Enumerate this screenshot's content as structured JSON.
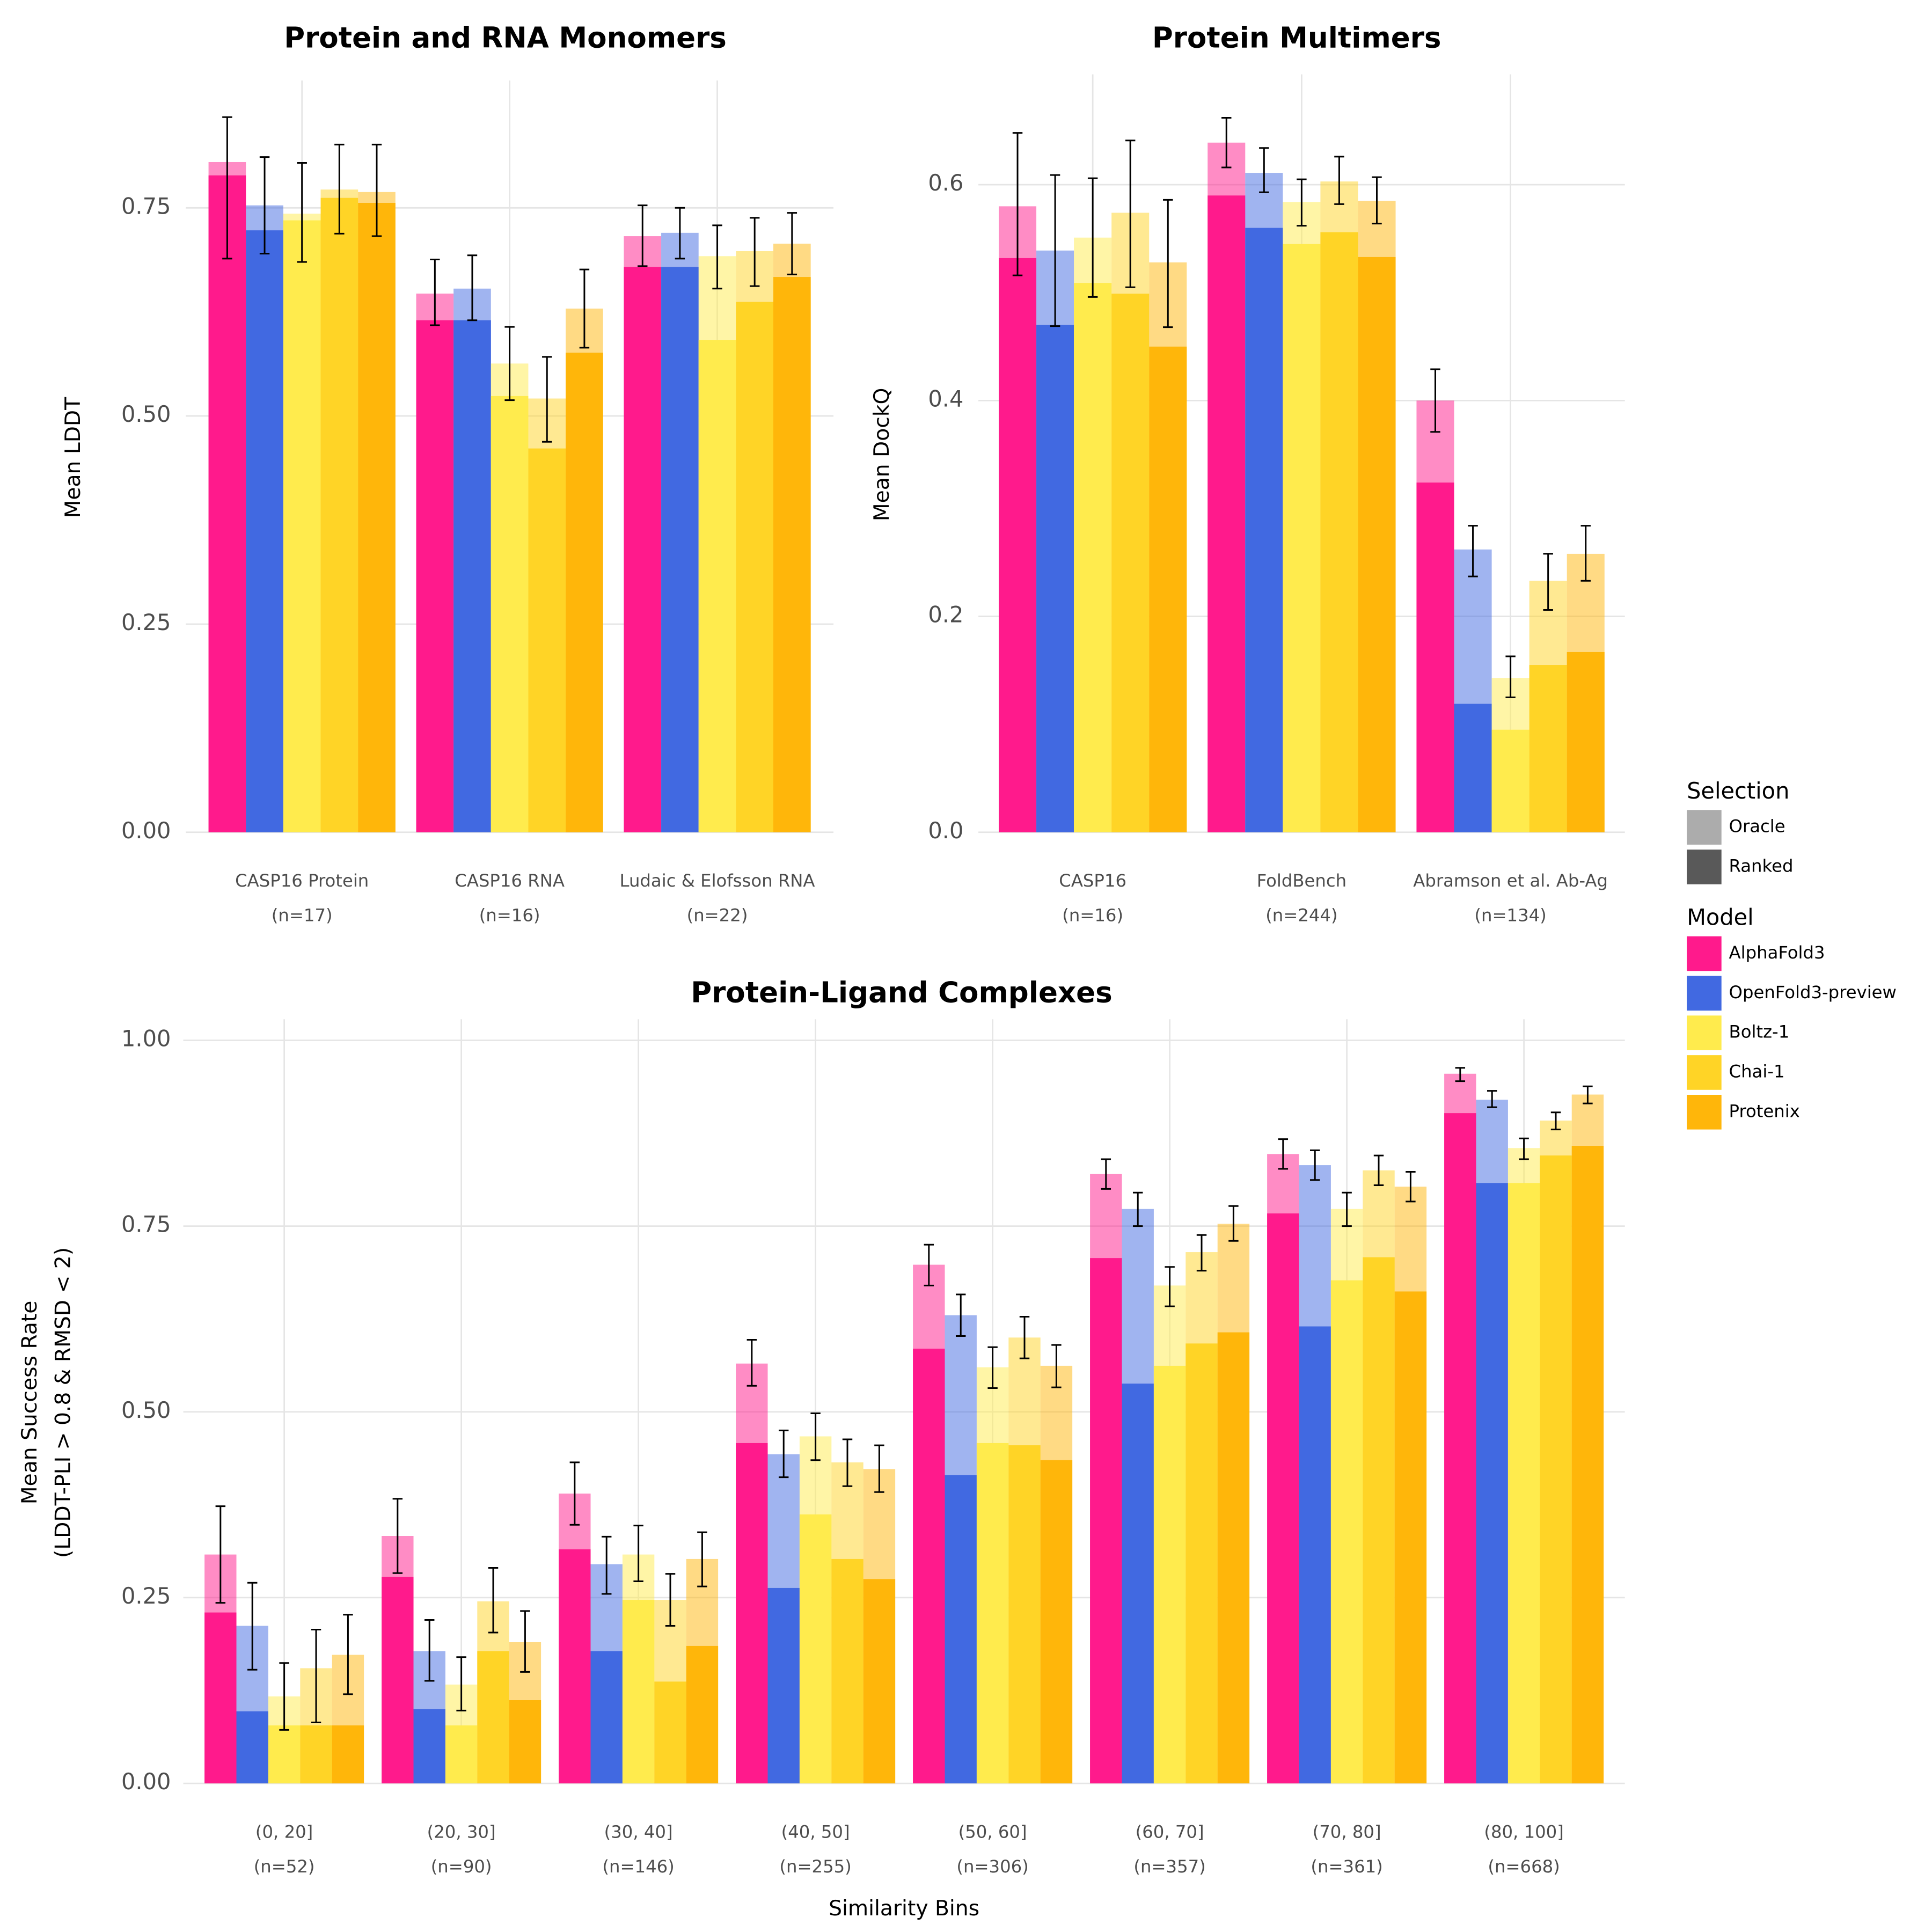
{
  "legend": {
    "selection": {
      "title": "Selection",
      "items": [
        {
          "label": "Oracle",
          "opacity": 0.5
        },
        {
          "label": "Ranked",
          "opacity": 1
        }
      ]
    },
    "model": {
      "title": "Model",
      "items": [
        {
          "name": "AlphaFold3",
          "color": "#ff1a8c"
        },
        {
          "name": "OpenFold3-preview",
          "color": "#4169e1"
        },
        {
          "name": "Boltz-1",
          "color": "#ffeb4d"
        },
        {
          "name": "Chai-1",
          "color": "#ffd426"
        },
        {
          "name": "Protenix",
          "color": "#ffb60a"
        }
      ]
    }
  },
  "chart_data": [
    {
      "type": "bar",
      "title": "Protein and RNA Monomers",
      "ylabel": [
        "Mean LDDT"
      ],
      "categories": [
        "CASP16 Protein",
        "CASP16 RNA",
        "Ludaic & Elofsson RNA"
      ],
      "category_counts": [
        "(n=17)",
        "(n=16)",
        "(n=22)"
      ],
      "ylim": [
        0,
        0.9
      ],
      "grid": true,
      "yticks": [
        {
          "value": 0,
          "label": "0.00"
        },
        {
          "value": 0.25,
          "label": "0.25"
        },
        {
          "value": 0.5,
          "label": "0.50"
        },
        {
          "value": 0.75,
          "label": "0.75"
        }
      ],
      "series": [
        {
          "oracle": [
            0.805,
            0.647,
            0.716
          ],
          "ranked": [
            0.789,
            0.615,
            0.679
          ],
          "ci_low": [
            0.689,
            0.609,
            0.68
          ],
          "ci_high": [
            0.859,
            0.688,
            0.753
          ]
        },
        {
          "oracle": [
            0.753,
            0.653,
            0.72
          ],
          "ranked": [
            0.723,
            0.615,
            0.679
          ],
          "ci_low": [
            0.695,
            0.615,
            0.689
          ],
          "ci_high": [
            0.811,
            0.693,
            0.75
          ]
        },
        {
          "oracle": [
            0.743,
            0.563,
            0.692
          ],
          "ranked": [
            0.735,
            0.524,
            0.591
          ],
          "ci_low": [
            0.685,
            0.519,
            0.653
          ],
          "ci_high": [
            0.804,
            0.607,
            0.729
          ]
        },
        {
          "oracle": [
            0.772,
            0.521,
            0.698
          ],
          "ranked": [
            0.762,
            0.461,
            0.637
          ],
          "ci_low": [
            0.719,
            0.469,
            0.656
          ],
          "ci_high": [
            0.826,
            0.571,
            0.738
          ]
        },
        {
          "oracle": [
            0.769,
            0.629,
            0.707
          ],
          "ranked": [
            0.756,
            0.576,
            0.667
          ],
          "ci_low": [
            0.716,
            0.582,
            0.67
          ],
          "ci_high": [
            0.826,
            0.676,
            0.744
          ]
        }
      ]
    },
    {
      "type": "bar",
      "title": "Protein Multimers",
      "ylabel": [
        "Mean DockQ"
      ],
      "categories": [
        "CASP16",
        "FoldBench",
        "Abramson et al. Ab-Ag"
      ],
      "category_counts": [
        "(n=16)",
        "(n=244)",
        "(n=134)"
      ],
      "ylim": [
        0,
        0.7
      ],
      "grid": true,
      "yticks": [
        {
          "value": 0,
          "label": "0.0"
        },
        0.2,
        0.4,
        0.6
      ],
      "series": [
        {
          "oracle": [
            0.58,
            0.639,
            0.4
          ],
          "ranked": [
            0.532,
            0.59,
            0.324
          ],
          "ci_low": [
            0.516,
            0.616,
            0.371
          ],
          "ci_high": [
            0.648,
            0.662,
            0.429
          ]
        },
        {
          "oracle": [
            0.539,
            0.611,
            0.262
          ],
          "ranked": [
            0.47,
            0.56,
            0.119
          ],
          "ci_low": [
            0.469,
            0.593,
            0.237
          ],
          "ci_high": [
            0.609,
            0.634,
            0.284
          ]
        },
        {
          "oracle": [
            0.551,
            0.584,
            0.143
          ],
          "ranked": [
            0.509,
            0.545,
            0.095
          ],
          "ci_low": [
            0.496,
            0.562,
            0.125
          ],
          "ci_high": [
            0.606,
            0.605,
            0.163
          ]
        },
        {
          "oracle": [
            0.574,
            0.603,
            0.233
          ],
          "ranked": [
            0.499,
            0.556,
            0.155
          ],
          "ci_low": [
            0.505,
            0.582,
            0.206
          ],
          "ci_high": [
            0.641,
            0.626,
            0.258
          ]
        },
        {
          "oracle": [
            0.528,
            0.585,
            0.258
          ],
          "ranked": [
            0.45,
            0.533,
            0.167
          ],
          "ci_low": [
            0.468,
            0.564,
            0.233
          ],
          "ci_high": [
            0.586,
            0.607,
            0.284
          ]
        }
      ]
    },
    {
      "type": "bar",
      "title": "Protein-Ligand Complexes",
      "ylabel": [
        "Mean Success Rate",
        "(LDDT-PLI > 0.8 & RMSD < 2)"
      ],
      "xlabel": "Similarity Bins",
      "categories": [
        "(0, 20]",
        "(20, 30]",
        "(30, 40]",
        "(40, 50]",
        "(50, 60]",
        "(60, 70]",
        "(70, 80]",
        "(80, 100]"
      ],
      "category_counts": [
        "(n=52)",
        "(n=90)",
        "(n=146)",
        "(n=255)",
        "(n=306)",
        "(n=357)",
        "(n=361)",
        "(n=668)"
      ],
      "ylim": [
        0,
        1.025
      ],
      "grid": true,
      "yticks": [
        {
          "value": 0,
          "label": "0.00"
        },
        {
          "value": 0.25,
          "label": "0.25"
        },
        {
          "value": 0.5,
          "label": "0.50"
        },
        {
          "value": 0.75,
          "label": "0.75"
        },
        {
          "value": 1,
          "label": "1.00"
        }
      ],
      "series": [
        {
          "oracle": [
            0.308,
            0.333,
            0.39,
            0.565,
            0.698,
            0.82,
            0.847,
            0.955
          ],
          "ranked": [
            0.23,
            0.278,
            0.315,
            0.458,
            0.585,
            0.707,
            0.767,
            0.902
          ],
          "ci_low": [
            0.243,
            0.283,
            0.348,
            0.535,
            0.67,
            0.8,
            0.827,
            0.945
          ],
          "ci_high": [
            0.373,
            0.383,
            0.432,
            0.597,
            0.725,
            0.84,
            0.867,
            0.963
          ]
        },
        {
          "oracle": [
            0.212,
            0.178,
            0.295,
            0.443,
            0.63,
            0.773,
            0.832,
            0.92
          ],
          "ranked": [
            0.097,
            0.1,
            0.178,
            0.263,
            0.415,
            0.538,
            0.615,
            0.808
          ],
          "ci_low": [
            0.153,
            0.138,
            0.255,
            0.412,
            0.602,
            0.75,
            0.812,
            0.91
          ],
          "ci_high": [
            0.27,
            0.22,
            0.332,
            0.475,
            0.658,
            0.795,
            0.852,
            0.932
          ]
        },
        {
          "oracle": [
            0.117,
            0.133,
            0.308,
            0.467,
            0.56,
            0.67,
            0.773,
            0.855
          ],
          "ranked": [
            0.078,
            0.078,
            0.247,
            0.362,
            0.458,
            0.562,
            0.677,
            0.808
          ],
          "ci_low": [
            0.072,
            0.098,
            0.272,
            0.435,
            0.532,
            0.642,
            0.75,
            0.84
          ],
          "ci_high": [
            0.162,
            0.17,
            0.347,
            0.498,
            0.587,
            0.695,
            0.795,
            0.868
          ]
        },
        {
          "oracle": [
            0.155,
            0.245,
            0.247,
            0.432,
            0.6,
            0.715,
            0.825,
            0.892
          ],
          "ranked": [
            0.078,
            0.178,
            0.137,
            0.302,
            0.455,
            0.592,
            0.708,
            0.845
          ],
          "ci_low": [
            0.082,
            0.203,
            0.212,
            0.4,
            0.572,
            0.69,
            0.805,
            0.88
          ],
          "ci_high": [
            0.207,
            0.29,
            0.282,
            0.463,
            0.628,
            0.738,
            0.845,
            0.903
          ]
        },
        {
          "oracle": [
            0.173,
            0.19,
            0.302,
            0.423,
            0.562,
            0.753,
            0.803,
            0.927
          ],
          "ranked": [
            0.078,
            0.112,
            0.185,
            0.275,
            0.435,
            0.607,
            0.662,
            0.858
          ],
          "ci_low": [
            0.12,
            0.15,
            0.265,
            0.392,
            0.533,
            0.73,
            0.783,
            0.915
          ],
          "ci_high": [
            0.227,
            0.232,
            0.338,
            0.455,
            0.59,
            0.777,
            0.823,
            0.938
          ]
        }
      ]
    }
  ]
}
